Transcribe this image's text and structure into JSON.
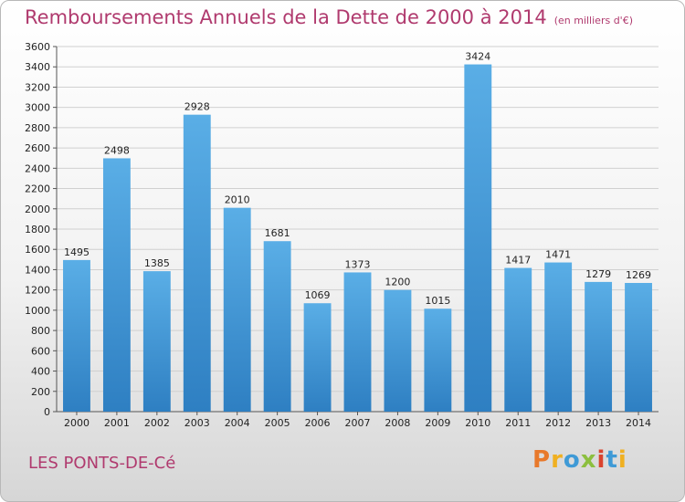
{
  "page": {
    "title": "Remboursements Annuels de la Dette de 2000 à 2014",
    "unit_note": "(en milliers d'€)",
    "city": "LES PONTS-DE-Cé",
    "logo": "Proxiti"
  },
  "colors": {
    "bar_light": "#5aaee6",
    "bar_dark": "#2e7fc2",
    "title": "#b03a6e",
    "logo_letters": [
      "#e8792b",
      "#f0b021",
      "#3f9ad6",
      "#8cbf3f",
      "#d9432e",
      "#3f9ad6",
      "#f0b021"
    ]
  },
  "chart_data": {
    "type": "bar",
    "categories": [
      "2000",
      "2001",
      "2002",
      "2003",
      "2004",
      "2005",
      "2006",
      "2007",
      "2008",
      "2009",
      "2010",
      "2011",
      "2012",
      "2013",
      "2014"
    ],
    "values": [
      1495,
      2498,
      1385,
      2928,
      2010,
      1681,
      1069,
      1373,
      1200,
      1015,
      3424,
      1417,
      1471,
      1279,
      1269
    ],
    "title": "Remboursements Annuels de la Dette de 2000 à 2014",
    "unit": "(en milliers d'€)",
    "ylim": [
      0,
      3600
    ],
    "ytick_step": 200,
    "grid": true,
    "data_labels": true
  }
}
